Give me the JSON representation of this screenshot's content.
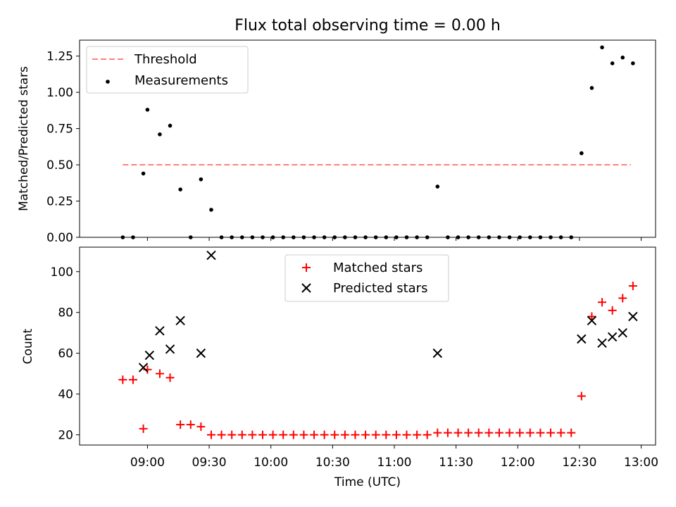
{
  "title": "Flux total observing time = 0.00 h",
  "chart_data": [
    {
      "type": "scatter",
      "ylabel": "Matched/Predicted stars",
      "ylim": [
        0,
        1.36
      ],
      "yticks": [
        0,
        0.25,
        0.5,
        0.75,
        1.0,
        1.25
      ],
      "yticklabels": [
        "0.00",
        "0.25",
        "0.50",
        "0.75",
        "1.00",
        "1.25"
      ],
      "legend_position": "top-left",
      "series": [
        {
          "name": "Threshold",
          "style": "dashed-line",
          "color": "#ff7f7f",
          "x": [
            "08:48",
            "12:55"
          ],
          "y": [
            0.5,
            0.5
          ]
        },
        {
          "name": "Measurements",
          "style": "dot",
          "color": "#000000",
          "x": [
            "08:48",
            "08:53",
            "08:58",
            "09:00",
            "09:06",
            "09:11",
            "09:16",
            "09:21",
            "09:26",
            "09:31",
            "09:36",
            "09:41",
            "09:46",
            "09:51",
            "09:56",
            "10:01",
            "10:06",
            "10:11",
            "10:16",
            "10:21",
            "10:26",
            "10:31",
            "10:36",
            "10:41",
            "10:46",
            "10:51",
            "10:56",
            "11:01",
            "11:06",
            "11:11",
            "11:16",
            "11:21",
            "11:26",
            "11:31",
            "11:36",
            "11:41",
            "11:46",
            "11:51",
            "11:56",
            "12:01",
            "12:06",
            "12:11",
            "12:16",
            "12:21",
            "12:26",
            "12:31",
            "12:36",
            "12:41",
            "12:46",
            "12:51",
            "12:56"
          ],
          "y": [
            0.0,
            0.0,
            0.44,
            0.88,
            0.71,
            0.77,
            0.33,
            0.0,
            0.4,
            0.19,
            0.0,
            0.0,
            0.0,
            0.0,
            0.0,
            0.0,
            0.0,
            0.0,
            0.0,
            0.0,
            0.0,
            0.0,
            0.0,
            0.0,
            0.0,
            0.0,
            0.0,
            0.0,
            0.0,
            0.0,
            0.0,
            0.35,
            0.0,
            0.0,
            0.0,
            0.0,
            0.0,
            0.0,
            0.0,
            0.0,
            0.0,
            0.0,
            0.0,
            0.0,
            0.0,
            0.58,
            1.03,
            1.31,
            1.2,
            1.24,
            1.2
          ]
        }
      ]
    },
    {
      "type": "scatter",
      "ylabel": "Count",
      "xlabel": "Time (UTC)",
      "ylim": [
        15,
        112
      ],
      "yticks": [
        20,
        40,
        60,
        80,
        100
      ],
      "yticklabels": [
        "20",
        "40",
        "60",
        "80",
        "100"
      ],
      "xlim": [
        "08:27",
        "13:07"
      ],
      "xticks": [
        "09:00",
        "09:30",
        "10:00",
        "10:30",
        "11:00",
        "11:30",
        "12:00",
        "12:30",
        "13:00"
      ],
      "legend_position": "top-center",
      "series": [
        {
          "name": "Matched stars",
          "style": "plus",
          "color": "#ff0000",
          "x": [
            "08:48",
            "08:53",
            "08:58",
            "09:00",
            "09:06",
            "09:11",
            "09:16",
            "09:21",
            "09:26",
            "09:31",
            "09:36",
            "09:41",
            "09:46",
            "09:51",
            "09:56",
            "10:01",
            "10:06",
            "10:11",
            "10:16",
            "10:21",
            "10:26",
            "10:31",
            "10:36",
            "10:41",
            "10:46",
            "10:51",
            "10:56",
            "11:01",
            "11:06",
            "11:11",
            "11:16",
            "11:21",
            "11:26",
            "11:31",
            "11:36",
            "11:41",
            "11:46",
            "11:51",
            "11:56",
            "12:01",
            "12:06",
            "12:11",
            "12:16",
            "12:21",
            "12:26",
            "12:31",
            "12:36",
            "12:41",
            "12:46",
            "12:51",
            "12:56"
          ],
          "y": [
            47,
            47,
            23,
            52,
            50,
            48,
            25,
            25,
            24,
            20,
            20,
            20,
            20,
            20,
            20,
            20,
            20,
            20,
            20,
            20,
            20,
            20,
            20,
            20,
            20,
            20,
            20,
            20,
            20,
            20,
            20,
            21,
            21,
            21,
            21,
            21,
            21,
            21,
            21,
            21,
            21,
            21,
            21,
            21,
            21,
            39,
            78,
            85,
            81,
            87,
            93
          ]
        },
        {
          "name": "Predicted stars",
          "style": "x",
          "color": "#000000",
          "x": [
            "08:58",
            "09:01",
            "09:06",
            "09:11",
            "09:16",
            "09:26",
            "09:31",
            "11:21",
            "12:31",
            "12:36",
            "12:41",
            "12:46",
            "12:51",
            "12:56"
          ],
          "y": [
            53,
            59,
            71,
            62,
            76,
            60,
            108,
            60,
            67,
            76,
            65,
            68,
            70,
            78
          ]
        }
      ]
    }
  ]
}
